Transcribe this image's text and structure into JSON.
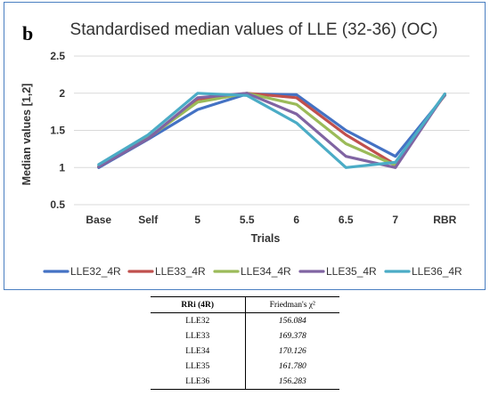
{
  "panel_letter": "b",
  "chart_data": {
    "type": "line",
    "title": "Standardised median values of LLE (32-36) (OC)",
    "xlabel": "Trials",
    "ylabel": "Median values [1,2]",
    "categories": [
      "Base",
      "Self",
      "5",
      "5.5",
      "6",
      "6.5",
      "7",
      "RBR"
    ],
    "ylim": [
      0.5,
      2.5
    ],
    "yticks": [
      "0.5",
      "1",
      "1.5",
      "2",
      "2.5"
    ],
    "grid": true,
    "legend_position": "bottom",
    "series": [
      {
        "name": "LLE32_4R",
        "color": "#4472c4",
        "values": [
          1.0,
          1.38,
          1.78,
          1.99,
          1.98,
          1.5,
          1.15,
          1.97
        ]
      },
      {
        "name": "LLE33_4R",
        "color": "#c0504d",
        "values": [
          1.01,
          1.39,
          1.92,
          2.0,
          1.94,
          1.44,
          1.04,
          1.98
        ]
      },
      {
        "name": "LLE34_4R",
        "color": "#9bbb59",
        "values": [
          1.02,
          1.4,
          1.88,
          2.0,
          1.85,
          1.32,
          1.03,
          1.99
        ]
      },
      {
        "name": "LLE35_4R",
        "color": "#8064a2",
        "values": [
          1.01,
          1.39,
          1.94,
          2.0,
          1.72,
          1.15,
          1.0,
          1.99
        ]
      },
      {
        "name": "LLE36_4R",
        "color": "#4bacc6",
        "values": [
          1.04,
          1.44,
          2.0,
          1.97,
          1.6,
          1.0,
          1.07,
          1.99
        ]
      }
    ]
  },
  "table": {
    "headers": [
      "RRi (4R)",
      "Friedman's χ²"
    ],
    "rows": [
      {
        "label": "LLE32",
        "value": "156.084"
      },
      {
        "label": "LLE33",
        "value": "169.378"
      },
      {
        "label": "LLE34",
        "value": "170.126"
      },
      {
        "label": "LLE35",
        "value": "161.780"
      },
      {
        "label": "LLE36",
        "value": "156.283"
      }
    ]
  }
}
